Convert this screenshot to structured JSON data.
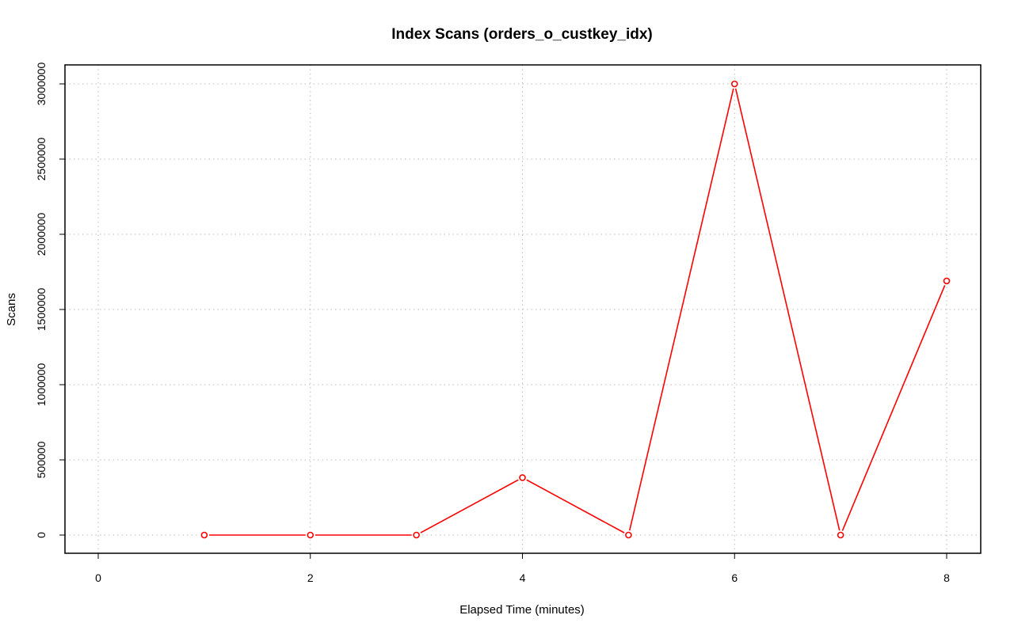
{
  "chart_data": {
    "type": "line",
    "title": "Index Scans (orders_o_custkey_idx)",
    "xlabel": "Elapsed Time (minutes)",
    "ylabel": "Scans",
    "xlim": [
      0,
      8
    ],
    "ylim": [
      0,
      3000000
    ],
    "x_ticks": [
      0,
      2,
      4,
      6,
      8
    ],
    "y_ticks": [
      0,
      500000,
      1000000,
      1500000,
      2000000,
      2500000,
      3000000
    ],
    "x_tick_labels": [
      "0",
      "2",
      "4",
      "6",
      "8"
    ],
    "y_tick_labels": [
      "0",
      "500000",
      "1000000",
      "1500000",
      "2000000",
      "2500000",
      "3000000"
    ],
    "grid": true,
    "series": [
      {
        "color": "#ff0000",
        "marker": "open-circle",
        "x": [
          1,
          2,
          3,
          4,
          5,
          6,
          7,
          8
        ],
        "y": [
          0,
          0,
          0,
          382000,
          0,
          3000000,
          0,
          1690000
        ]
      }
    ]
  }
}
